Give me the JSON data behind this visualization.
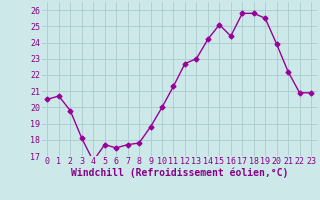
{
  "x": [
    0,
    1,
    2,
    3,
    4,
    5,
    6,
    7,
    8,
    9,
    10,
    11,
    12,
    13,
    14,
    15,
    16,
    17,
    18,
    19,
    20,
    21,
    22,
    23
  ],
  "y": [
    20.5,
    20.7,
    19.8,
    18.1,
    16.7,
    17.7,
    17.5,
    17.7,
    17.8,
    18.8,
    20.0,
    21.3,
    22.7,
    23.0,
    24.2,
    25.1,
    24.4,
    25.8,
    25.8,
    25.5,
    23.9,
    22.2,
    20.9,
    20.9
  ],
  "line_color": "#990099",
  "marker": "D",
  "marker_size": 2.5,
  "line_width": 1.0,
  "xlabel": "Windchill (Refroidissement éolien,°C)",
  "ylim": [
    17,
    26.5
  ],
  "xlim": [
    -0.5,
    23.5
  ],
  "yticks": [
    17,
    18,
    19,
    20,
    21,
    22,
    23,
    24,
    25,
    26
  ],
  "xticks": [
    0,
    1,
    2,
    3,
    4,
    5,
    6,
    7,
    8,
    9,
    10,
    11,
    12,
    13,
    14,
    15,
    16,
    17,
    18,
    19,
    20,
    21,
    22,
    23
  ],
  "bg_color": "#cce8e8",
  "grid_color": "#aacccc",
  "tick_color": "#880088",
  "label_color": "#880088",
  "xlabel_fontsize": 7,
  "tick_fontsize": 6
}
